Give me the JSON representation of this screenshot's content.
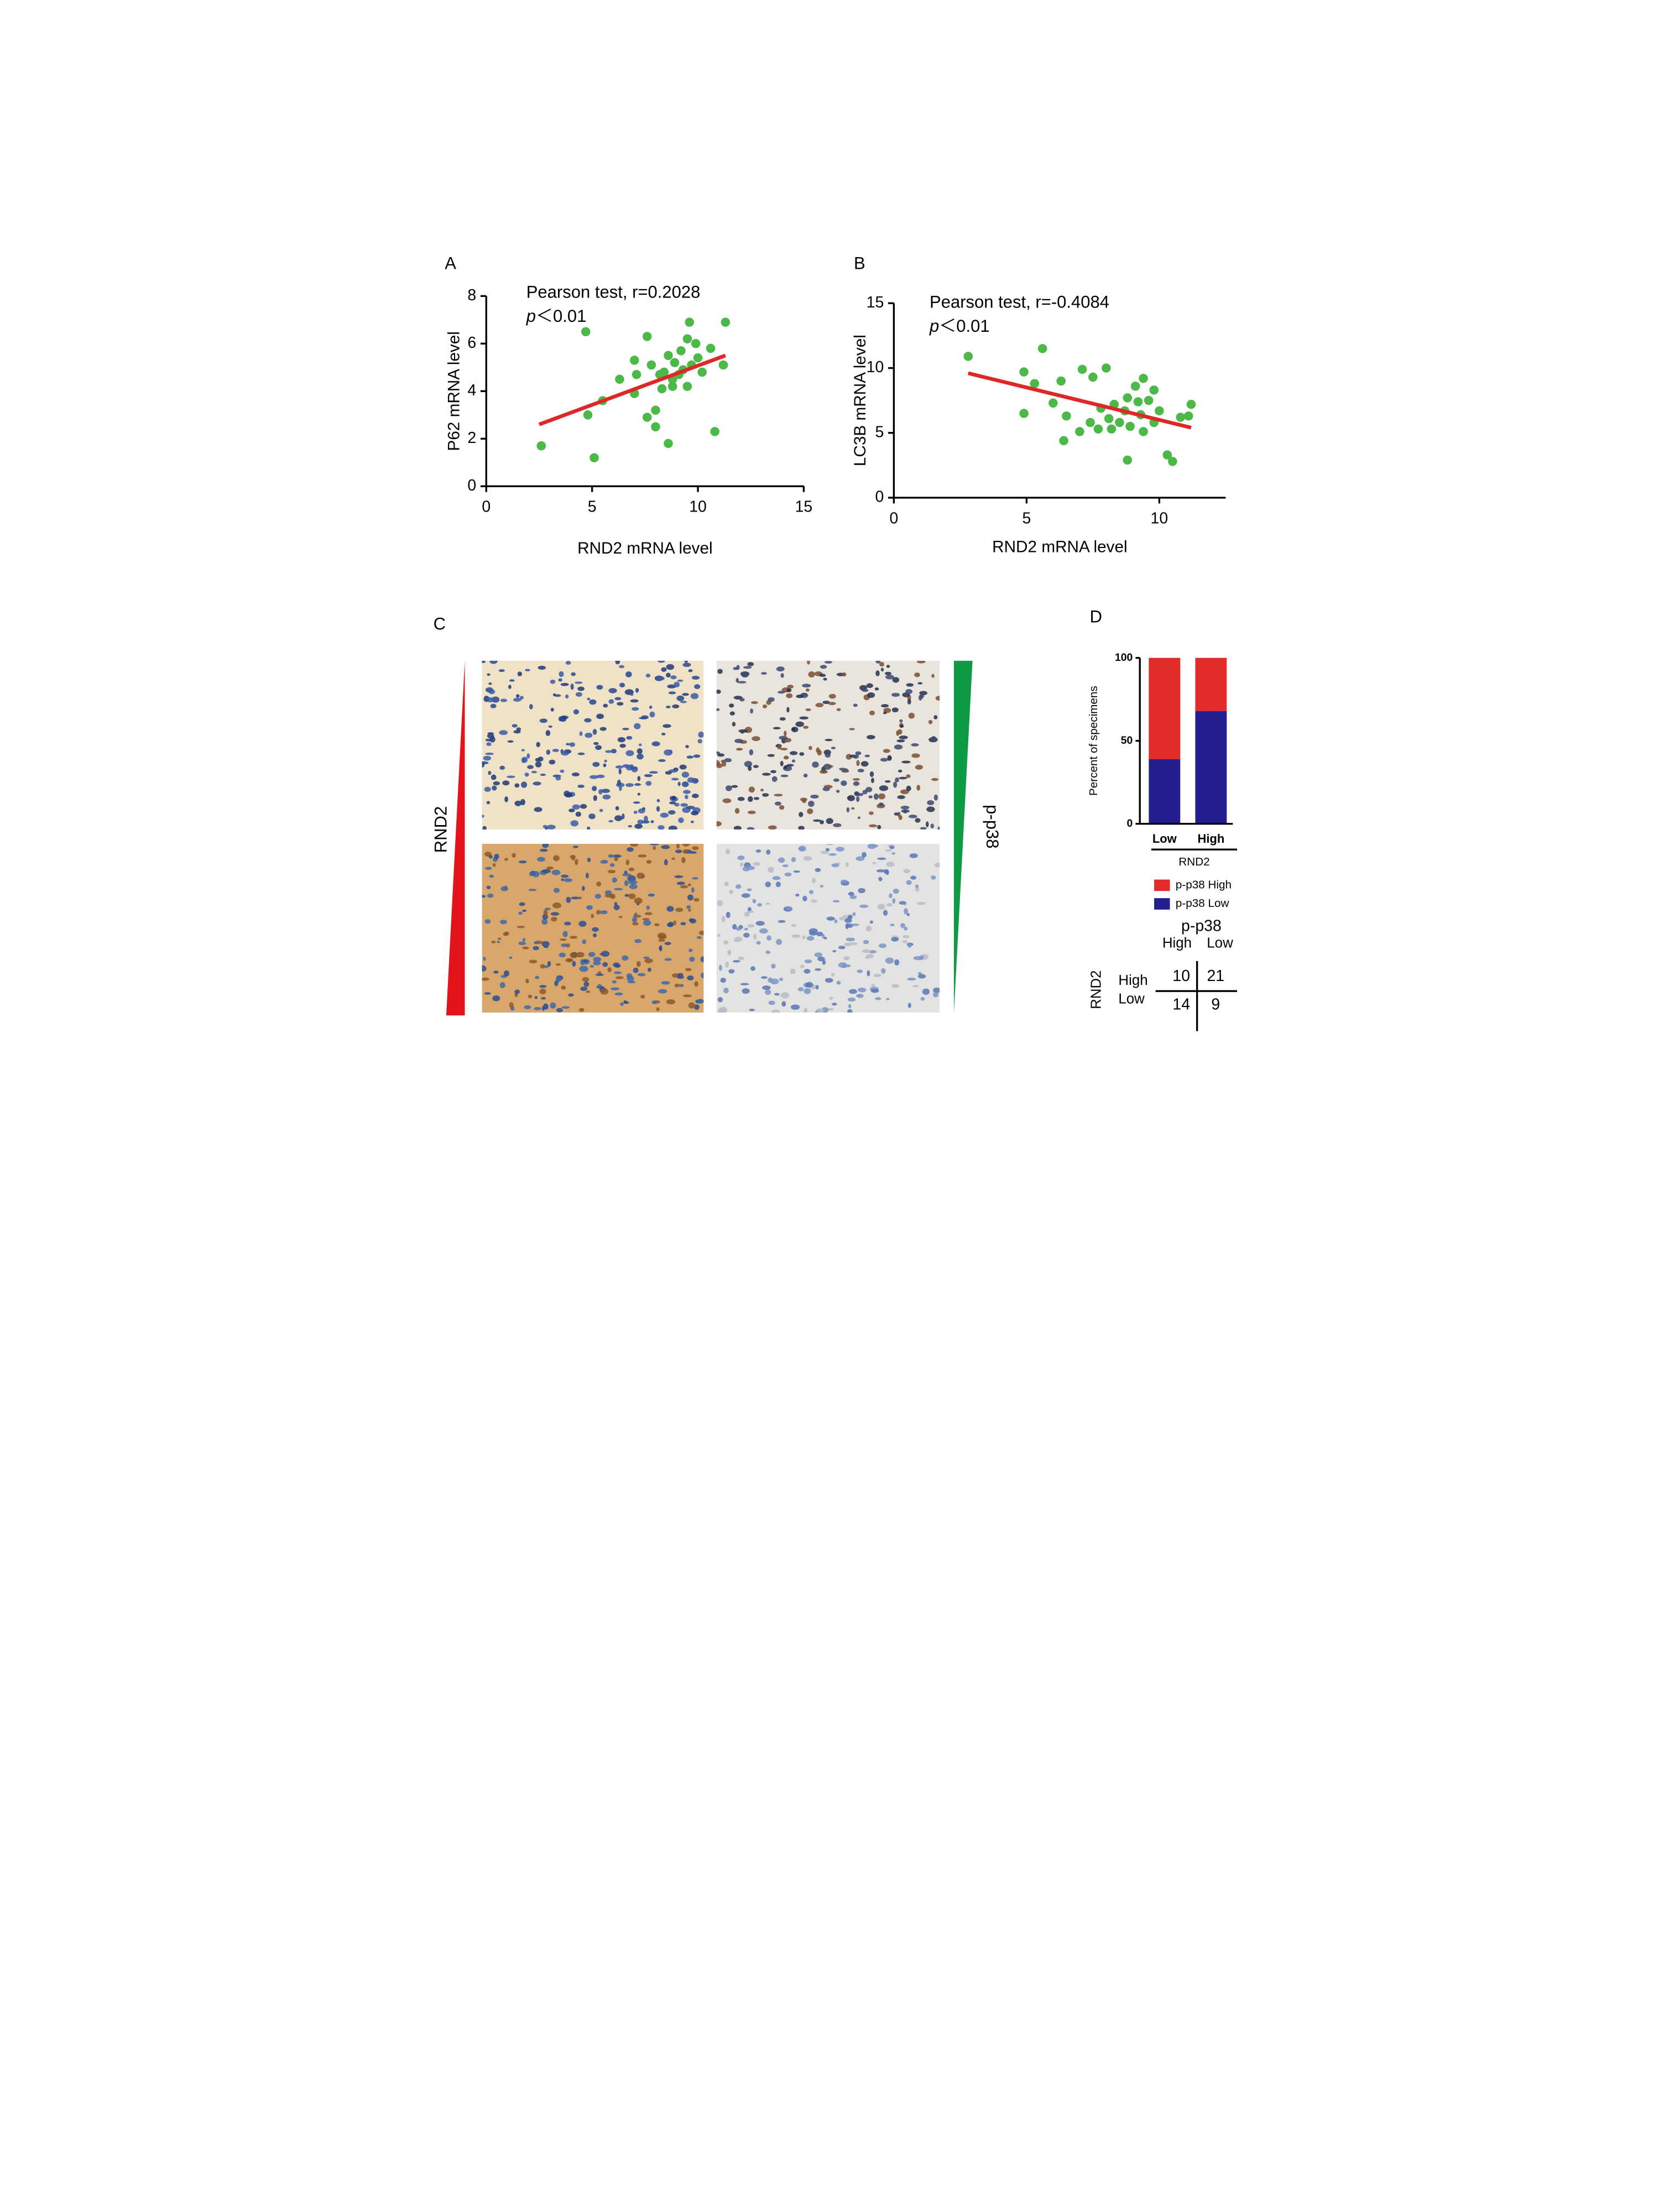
{
  "chart_data": [
    {
      "type": "scatter",
      "panel": "A",
      "annotations": [
        "Pearson test, r=0.2028"
      ],
      "p_value": {
        "symbol": "p",
        "text": "＜0.01"
      },
      "x_label": "RND2 mRNA level",
      "y_label": "P62 mRNA  level",
      "x": [
        2.6,
        4.7,
        4.8,
        5.1,
        5.5,
        6.3,
        7.0,
        7.0,
        7.6,
        7.6,
        7.8,
        8.0,
        8.0,
        8.2,
        8.3,
        8.4,
        8.6,
        8.6,
        8.8,
        8.9,
        9.1,
        9.2,
        9.3,
        9.5,
        9.5,
        9.6,
        9.7,
        9.9,
        10.0,
        10.2,
        10.6,
        10.8,
        11.2,
        11.3,
        8.8,
        7.1
      ],
      "y": [
        1.7,
        6.5,
        3.0,
        1.2,
        3.6,
        4.5,
        5.3,
        3.9,
        6.3,
        2.9,
        5.1,
        3.2,
        2.5,
        4.7,
        4.1,
        4.8,
        1.8,
        5.5,
        4.5,
        5.2,
        4.7,
        5.7,
        4.9,
        6.2,
        4.2,
        6.9,
        5.1,
        6.0,
        5.4,
        4.8,
        5.8,
        2.3,
        5.1,
        6.9,
        4.2,
        4.7
      ],
      "color": "#4cb848",
      "trendline": {
        "x": [
          2.5,
          11.3
        ],
        "y": [
          2.6,
          5.5
        ],
        "color": "#e02727"
      },
      "xlim": [
        0,
        15
      ],
      "xticks": [
        0,
        5,
        10,
        15
      ],
      "ylim": [
        0,
        8
      ],
      "yticks": [
        0,
        2,
        4,
        6,
        8
      ]
    },
    {
      "type": "scatter",
      "panel": "B",
      "annotations": [
        "Pearson test, r=-0.4084"
      ],
      "p_value": {
        "symbol": "p",
        "text": "＜0.01"
      },
      "x_label": "RND2 mRNA level",
      "y_label": "LC3B mRNA  level",
      "x": [
        2.8,
        4.9,
        4.9,
        5.3,
        5.6,
        6.0,
        6.3,
        6.4,
        6.5,
        7.0,
        7.1,
        7.4,
        7.5,
        7.7,
        7.8,
        8.0,
        8.1,
        8.2,
        8.3,
        8.5,
        8.7,
        8.8,
        8.8,
        8.9,
        9.1,
        9.2,
        9.3,
        9.4,
        9.4,
        9.6,
        9.8,
        9.8,
        10.0,
        10.3,
        10.5,
        10.8,
        11.1,
        11.2
      ],
      "y": [
        10.9,
        9.7,
        6.5,
        8.8,
        11.5,
        7.3,
        9.0,
        4.4,
        6.3,
        5.1,
        9.9,
        5.8,
        9.3,
        5.3,
        6.9,
        10.0,
        6.1,
        5.3,
        7.2,
        5.8,
        6.7,
        7.7,
        2.9,
        5.5,
        8.6,
        7.4,
        6.4,
        9.2,
        5.1,
        7.5,
        8.3,
        5.8,
        6.7,
        3.3,
        2.8,
        6.2,
        6.3,
        7.2
      ],
      "color": "#4cb848",
      "trendline": {
        "x": [
          2.8,
          11.2
        ],
        "y": [
          9.6,
          5.4
        ],
        "color": "#e02727"
      },
      "xlim": [
        0,
        12.5
      ],
      "xticks": [
        0,
        5,
        10
      ],
      "ylim": [
        0,
        15
      ],
      "yticks": [
        0,
        5,
        10,
        15
      ]
    },
    {
      "type": "stacked_bar",
      "panel": "D",
      "y_label": "Percent of specimens",
      "x_label": "RND2",
      "categories": [
        "Low",
        "High"
      ],
      "series": [
        {
          "name": "p-p38 Low",
          "color": "#231f8e",
          "values": [
            39,
            68
          ]
        },
        {
          "name": "p-p38 High",
          "color": "#e42b2b",
          "values": [
            61,
            32
          ]
        }
      ],
      "ylim": [
        0,
        100
      ],
      "yticks": [
        0,
        50,
        100
      ]
    }
  ],
  "panel_c": {
    "label": "C",
    "left_label": "RND2",
    "right_label": "p-p38"
  },
  "table": {
    "title": "p-p38",
    "columns": [
      "High",
      "Low"
    ],
    "row_title": "RND2",
    "rows": [
      {
        "label": "High",
        "values": [
          10,
          21
        ]
      },
      {
        "label": "Low",
        "values": [
          14,
          9
        ]
      }
    ]
  }
}
